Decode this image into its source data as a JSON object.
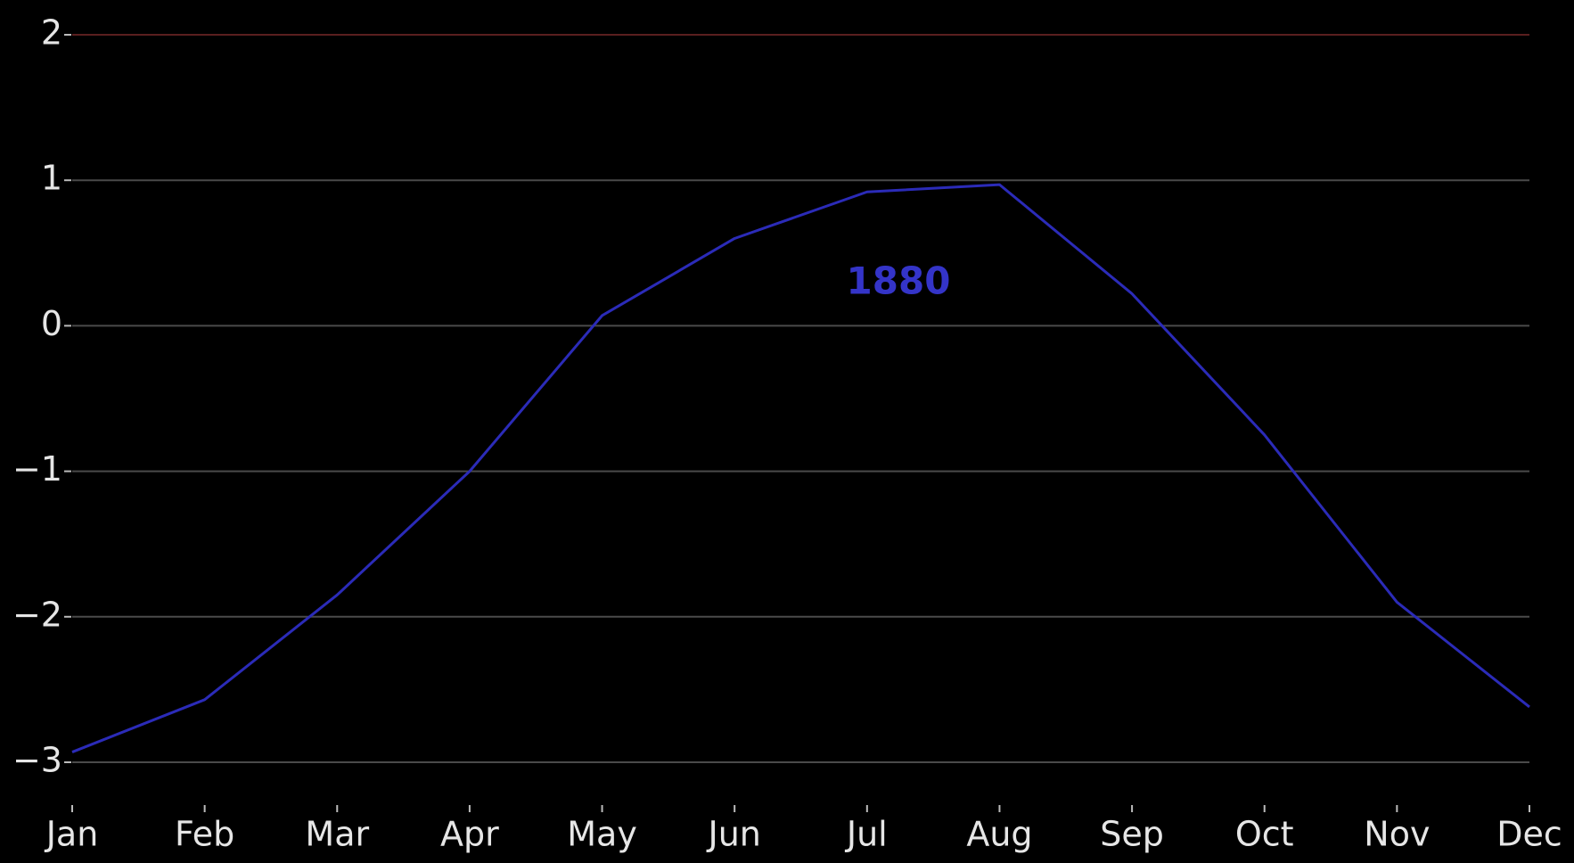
{
  "chart_data": {
    "type": "line",
    "annotation": "1880",
    "categories": [
      "Jan",
      "Feb",
      "Mar",
      "Apr",
      "May",
      "Jun",
      "Jul",
      "Aug",
      "Sep",
      "Oct",
      "Nov",
      "Dec"
    ],
    "series": [
      {
        "name": "1880",
        "color": "#2b2bb8",
        "values": [
          -2.93,
          -2.57,
          -1.85,
          -1.0,
          0.07,
          0.6,
          0.92,
          0.97,
          0.22,
          -0.75,
          -1.9,
          -2.62
        ]
      }
    ],
    "ylim": [
      -3,
      2
    ],
    "yticks": [
      {
        "value": -3,
        "label": "−3"
      },
      {
        "value": -2,
        "label": "−2"
      },
      {
        "value": -1,
        "label": "−1"
      },
      0,
      1,
      2
    ],
    "grid": true
  }
}
